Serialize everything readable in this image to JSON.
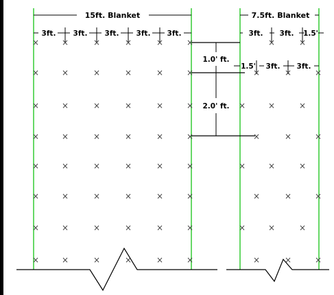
{
  "blanket_left": {
    "title": "15ft. Blanket",
    "spacings": [
      "3ft.",
      "3ft.",
      "3ft.",
      "3ft.",
      "3ft."
    ]
  },
  "blanket_right": {
    "title": "7.5ft. Blanket",
    "spacings_top": [
      "3ft.",
      "3ft.",
      "1.5'"
    ],
    "spacings_offset": [
      "1.5'",
      "3ft.",
      "3ft."
    ]
  },
  "offsets": {
    "first": "1.0' ft.",
    "second": "2.0' ft."
  },
  "marker": "×",
  "colors": {
    "seam_line": "#33cc33",
    "ink": "#000000",
    "marker": "#555555"
  }
}
